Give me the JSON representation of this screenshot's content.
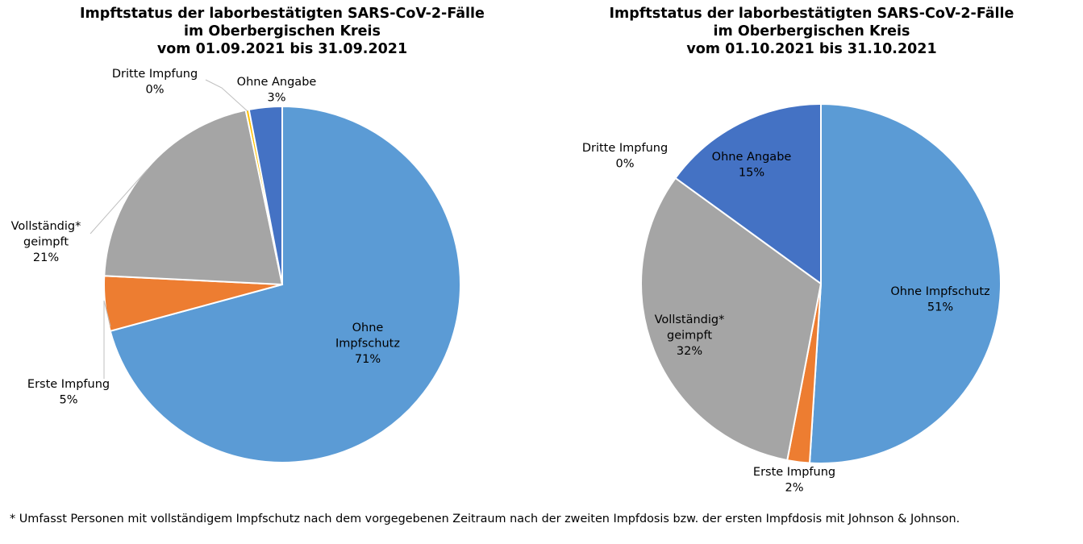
{
  "chart_data": [
    {
      "type": "pie",
      "title": [
        "Impftstatus der laborbestätigten SARS-CoV-2-Fälle",
        "im Oberbergischen Kreis",
        "vom 01.09.2021 bis 31.09.2021"
      ],
      "slices": [
        {
          "label": "Ohne Impfschutz",
          "value": 71,
          "display": "71%",
          "color": "#5B9BD5"
        },
        {
          "label": "Erste Impfung",
          "value": 5,
          "display": "5%",
          "color": "#ED7D31"
        },
        {
          "label": "Vollständig* geimpft",
          "value": 21,
          "display": "21%",
          "color": "#A5A5A5"
        },
        {
          "label": "Dritte Impfung",
          "value": 0.3,
          "display": "0%",
          "color": "#FFC000"
        },
        {
          "label": "Ohne Angabe",
          "value": 3,
          "display": "3%",
          "color": "#4472C4"
        }
      ]
    },
    {
      "type": "pie",
      "title": [
        "Impftstatus der laborbestätigten SARS-CoV-2-Fälle",
        "im Oberbergischen Kreis",
        "vom 01.10.2021 bis 31.10.2021"
      ],
      "slices": [
        {
          "label": "Ohne Impfschutz",
          "value": 51,
          "display": "51%",
          "color": "#5B9BD5"
        },
        {
          "label": "Erste Impfung",
          "value": 2,
          "display": "2%",
          "color": "#ED7D31"
        },
        {
          "label": "Vollständig* geimpft",
          "value": 32,
          "display": "32%",
          "color": "#A5A5A5"
        },
        {
          "label": "Dritte Impfung",
          "value": 0,
          "display": "0%",
          "color": "#FFC000"
        },
        {
          "label": "Ohne Angabe",
          "value": 15,
          "display": "15%",
          "color": "#4472C4"
        }
      ]
    }
  ],
  "footnote": "* Umfasst Personen mit vollständigem Impfschutz nach dem vorgegebenen Zeitraum nach der zweiten Impfdosis bzw. der ersten Impfdosis mit Johnson & Johnson."
}
